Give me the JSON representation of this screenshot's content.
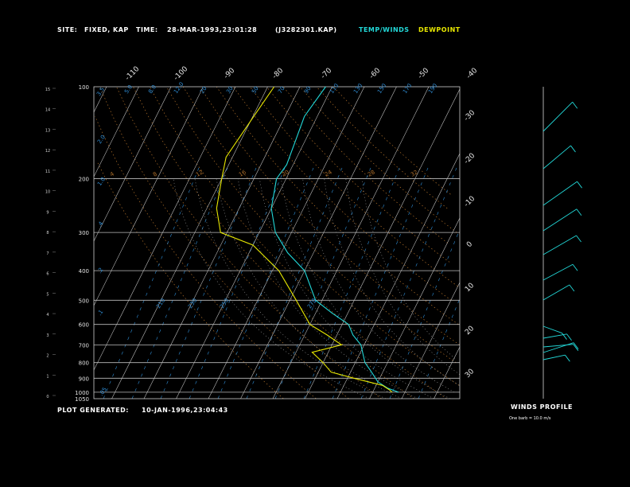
{
  "header": {
    "site_label": "SITE:",
    "site_value": "FIXED, KAP",
    "time_label": "TIME:",
    "time_value": "28-MAR-1993,23:01:28",
    "file_id": "(J3282301.KAP)",
    "temp_legend": "TEMP/WINDS",
    "dew_legend": "DEWPOINT"
  },
  "footer": {
    "generated_label": "PLOT GENERATED:",
    "generated_value": "10-JAN-1996,23:04:43"
  },
  "wind_panel": {
    "title": "WINDS PROFILE",
    "note": "One barb = 10.0 m/s"
  },
  "colors": {
    "temp": "#22d8d8",
    "dew": "#e6e600",
    "isobar": "#bcbcbc",
    "isotherm": "#bcbcbc",
    "dry_adiabat": "#b0702a",
    "moist_adiabat": "#a8a8a8",
    "mixing_ratio": "#2f8fd8"
  },
  "chart_data": {
    "type": "line",
    "title": "",
    "xlabel": "",
    "ylabel": "",
    "pressure_levels": [
      100,
      200,
      300,
      400,
      500,
      600,
      700,
      800,
      900,
      1000,
      1050
    ],
    "height_ticks_km": [
      0,
      1,
      2,
      3,
      4,
      5,
      6,
      7,
      8,
      9,
      10,
      11,
      12,
      13,
      14,
      15
    ],
    "isotherm_labels_top": [
      -110,
      -100,
      -90,
      -80,
      -70,
      -60,
      -50,
      -40
    ],
    "isotherm_labels_right": [
      -30,
      -20,
      -10,
      0,
      10,
      20,
      30
    ],
    "dry_adiabat_labels": [
      "4",
      "8",
      "12",
      "16",
      "20",
      "24",
      "28",
      "32"
    ],
    "mixing_ratio_labels": [
      ".05",
      ".1",
      ".2",
      ".4",
      "1.0",
      "2.0",
      "3.5",
      "5.0",
      "8.0",
      "12.0",
      "20",
      "30",
      "50",
      "70",
      "90",
      "110",
      "130",
      "150",
      "170",
      "190",
      "210",
      "230",
      "250",
      "270"
    ],
    "series": [
      {
        "name": "TEMP/WINDS",
        "x": [
          -2,
          -6,
          -10,
          -14,
          -17,
          -21,
          -25,
          -28,
          -35,
          -42,
          -50,
          -58,
          -65,
          -70,
          -73,
          -72,
          -73,
          -74,
          -72
        ],
        "y": [
          1000,
          970,
          925,
          850,
          800,
          700,
          650,
          600,
          550,
          500,
          400,
          350,
          300,
          250,
          200,
          180,
          150,
          125,
          100
        ]
      },
      {
        "name": "DEWPOINT",
        "x": [
          -4,
          -5,
          -8,
          -18,
          -26,
          -30,
          -35,
          -27,
          -33,
          -40,
          -48,
          -58,
          -70,
          -82,
          -87,
          -90,
          -92,
          -90,
          -88
        ],
        "y": [
          1000,
          985,
          950,
          900,
          860,
          800,
          740,
          700,
          650,
          600,
          500,
          400,
          330,
          300,
          250,
          200,
          170,
          130,
          100
        ]
      }
    ]
  }
}
